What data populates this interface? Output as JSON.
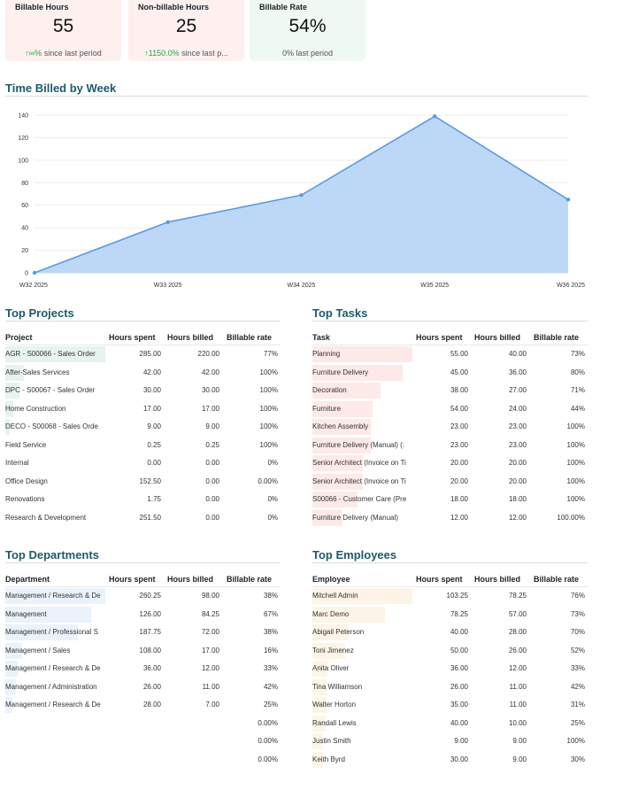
{
  "kpis": [
    {
      "title": "Billable Hours",
      "value": "55",
      "trend": "∞%",
      "trend_suffix": " since last period",
      "color": "red"
    },
    {
      "title": "Non-billable Hours",
      "value": "25",
      "trend": "1150.0%",
      "trend_suffix": " since last p...",
      "color": "red"
    },
    {
      "title": "Billable Rate",
      "value": "54%",
      "trend": "",
      "trend_suffix": "0% last period",
      "color": "green"
    }
  ],
  "chart_title": "Time Billed by Week",
  "chart_data": {
    "type": "area",
    "categories": [
      "W32 2025",
      "W33 2025",
      "W34 2025",
      "W35 2025",
      "W36 2025"
    ],
    "values": [
      0,
      45,
      69,
      139,
      65
    ],
    "ylim": [
      0,
      140
    ],
    "yticks": [
      0,
      20,
      40,
      60,
      80,
      100,
      120,
      140
    ],
    "grid": true,
    "line_color": "#5b9be3",
    "fill_color": "#bdd7f6"
  },
  "projects": {
    "title": "Top Projects",
    "headers": [
      "Project",
      "Hours spent",
      "Hours billed",
      "Billable rate"
    ],
    "bar_color": "#e6f3ee",
    "rows": [
      {
        "name": "AGR - S00066 - Sales Order",
        "spent": "285.00",
        "billed": "220.00",
        "rate": "77%",
        "bar": 1.0
      },
      {
        "name": "After-Sales Services",
        "spent": "42.00",
        "billed": "42.00",
        "rate": "100%",
        "bar": 0.19
      },
      {
        "name": "DPC - S00067 - Sales Order",
        "spent": "30.00",
        "billed": "30.00",
        "rate": "100%",
        "bar": 0.14
      },
      {
        "name": "Home Construction",
        "spent": "17.00",
        "billed": "17.00",
        "rate": "100%",
        "bar": 0.08
      },
      {
        "name": "DECO - S00068 - Sales Orde",
        "spent": "9.00",
        "billed": "9.00",
        "rate": "100%",
        "bar": 0.04
      },
      {
        "name": "Field Service",
        "spent": "0.25",
        "billed": "0.25",
        "rate": "100%",
        "bar": 0.0
      },
      {
        "name": "Internal",
        "spent": "0.00",
        "billed": "0.00",
        "rate": "0%",
        "bar": 0.0
      },
      {
        "name": "Office Design",
        "spent": "152.50",
        "billed": "0.00",
        "rate": "0.00%",
        "bar": 0.0
      },
      {
        "name": "Renovations",
        "spent": "1.75",
        "billed": "0.00",
        "rate": "0%",
        "bar": 0.0
      },
      {
        "name": "Research & Development",
        "spent": "251.50",
        "billed": "0.00",
        "rate": "0%",
        "bar": 0.0
      }
    ]
  },
  "tasks": {
    "title": "Top Tasks",
    "headers": [
      "Task",
      "Hours spent",
      "Hours billed",
      "Billable rate"
    ],
    "bar_color": "#fde9e8",
    "rows": [
      {
        "name": "Planning",
        "spent": "55.00",
        "billed": "40.00",
        "rate": "73%",
        "bar": 1.0
      },
      {
        "name": "Furniture Delivery",
        "spent": "45.00",
        "billed": "36.00",
        "rate": "80%",
        "bar": 0.9
      },
      {
        "name": "Decoration",
        "spent": "38.00",
        "billed": "27.00",
        "rate": "71%",
        "bar": 0.68
      },
      {
        "name": "Furniture",
        "spent": "54.00",
        "billed": "24.00",
        "rate": "44%",
        "bar": 0.6
      },
      {
        "name": "Kitchen Assembly",
        "spent": "23.00",
        "billed": "23.00",
        "rate": "100%",
        "bar": 0.58
      },
      {
        "name": "Furniture Delivery (Manual)  (:",
        "spent": "23.00",
        "billed": "23.00",
        "rate": "100%",
        "bar": 0.58
      },
      {
        "name": "Senior Architect (Invoice on Ti",
        "spent": "20.00",
        "billed": "20.00",
        "rate": "100%",
        "bar": 0.5
      },
      {
        "name": "Senior Architect (Invoice on Ti",
        "spent": "20.00",
        "billed": "20.00",
        "rate": "100%",
        "bar": 0.5
      },
      {
        "name": "S00066 - Customer Care (Pre",
        "spent": "18.00",
        "billed": "18.00",
        "rate": "100%",
        "bar": 0.45
      },
      {
        "name": "Furniture Delivery (Manual)",
        "spent": "12.00",
        "billed": "12.00",
        "rate": "100.00%",
        "bar": 0.3
      }
    ]
  },
  "departments": {
    "title": "Top Departments",
    "headers": [
      "Department",
      "Hours spent",
      "Hours billed",
      "Billable rate"
    ],
    "bar_color": "#eaf2fb",
    "rows": [
      {
        "name": "Management / Research & De",
        "spent": "260.25",
        "billed": "98.00",
        "rate": "38%",
        "bar": 1.0
      },
      {
        "name": "Management",
        "spent": "126.00",
        "billed": "84.25",
        "rate": "67%",
        "bar": 0.86
      },
      {
        "name": "Management / Professional S",
        "spent": "187.75",
        "billed": "72.00",
        "rate": "38%",
        "bar": 0.73
      },
      {
        "name": "Management / Sales",
        "spent": "108.00",
        "billed": "17.00",
        "rate": "16%",
        "bar": 0.17
      },
      {
        "name": "Management / Research & De",
        "spent": "36.00",
        "billed": "12.00",
        "rate": "33%",
        "bar": 0.12
      },
      {
        "name": "Management / Administration",
        "spent": "26.00",
        "billed": "11.00",
        "rate": "42%",
        "bar": 0.11
      },
      {
        "name": "Management / Research & De",
        "spent": "28.00",
        "billed": "7.00",
        "rate": "25%",
        "bar": 0.07
      },
      {
        "name": "",
        "spent": "",
        "billed": "",
        "rate": "0.00%",
        "bar": 0.0
      },
      {
        "name": "",
        "spent": "",
        "billed": "",
        "rate": "0.00%",
        "bar": 0.0
      },
      {
        "name": "",
        "spent": "",
        "billed": "",
        "rate": "0.00%",
        "bar": 0.0
      }
    ]
  },
  "employees": {
    "title": "Top Employees",
    "headers": [
      "Employee",
      "Hours spent",
      "Hours billed",
      "Billable rate"
    ],
    "bar_color": "#fdf4e8",
    "rows": [
      {
        "name": "Mitchell Admin",
        "spent": "103.25",
        "billed": "78.25",
        "rate": "76%",
        "bar": 1.0
      },
      {
        "name": "Marc Demo",
        "spent": "78.25",
        "billed": "57.00",
        "rate": "73%",
        "bar": 0.73
      },
      {
        "name": "Abigail Peterson",
        "spent": "40.00",
        "billed": "28.00",
        "rate": "70%",
        "bar": 0.36
      },
      {
        "name": "Toni Jimenez",
        "spent": "50.00",
        "billed": "26.00",
        "rate": "52%",
        "bar": 0.33
      },
      {
        "name": "Anita Oliver",
        "spent": "36.00",
        "billed": "12.00",
        "rate": "33%",
        "bar": 0.15
      },
      {
        "name": "Tina Williamson",
        "spent": "26.00",
        "billed": "11.00",
        "rate": "42%",
        "bar": 0.14
      },
      {
        "name": "Walter Horton",
        "spent": "35.00",
        "billed": "11.00",
        "rate": "31%",
        "bar": 0.14
      },
      {
        "name": "Randall Lewis",
        "spent": "40.00",
        "billed": "10.00",
        "rate": "25%",
        "bar": 0.13
      },
      {
        "name": "Justin Smith",
        "spent": "9.00",
        "billed": "9.00",
        "rate": "100%",
        "bar": 0.11
      },
      {
        "name": "Keith Byrd",
        "spent": "30.00",
        "billed": "9.00",
        "rate": "30%",
        "bar": 0.11
      }
    ]
  }
}
